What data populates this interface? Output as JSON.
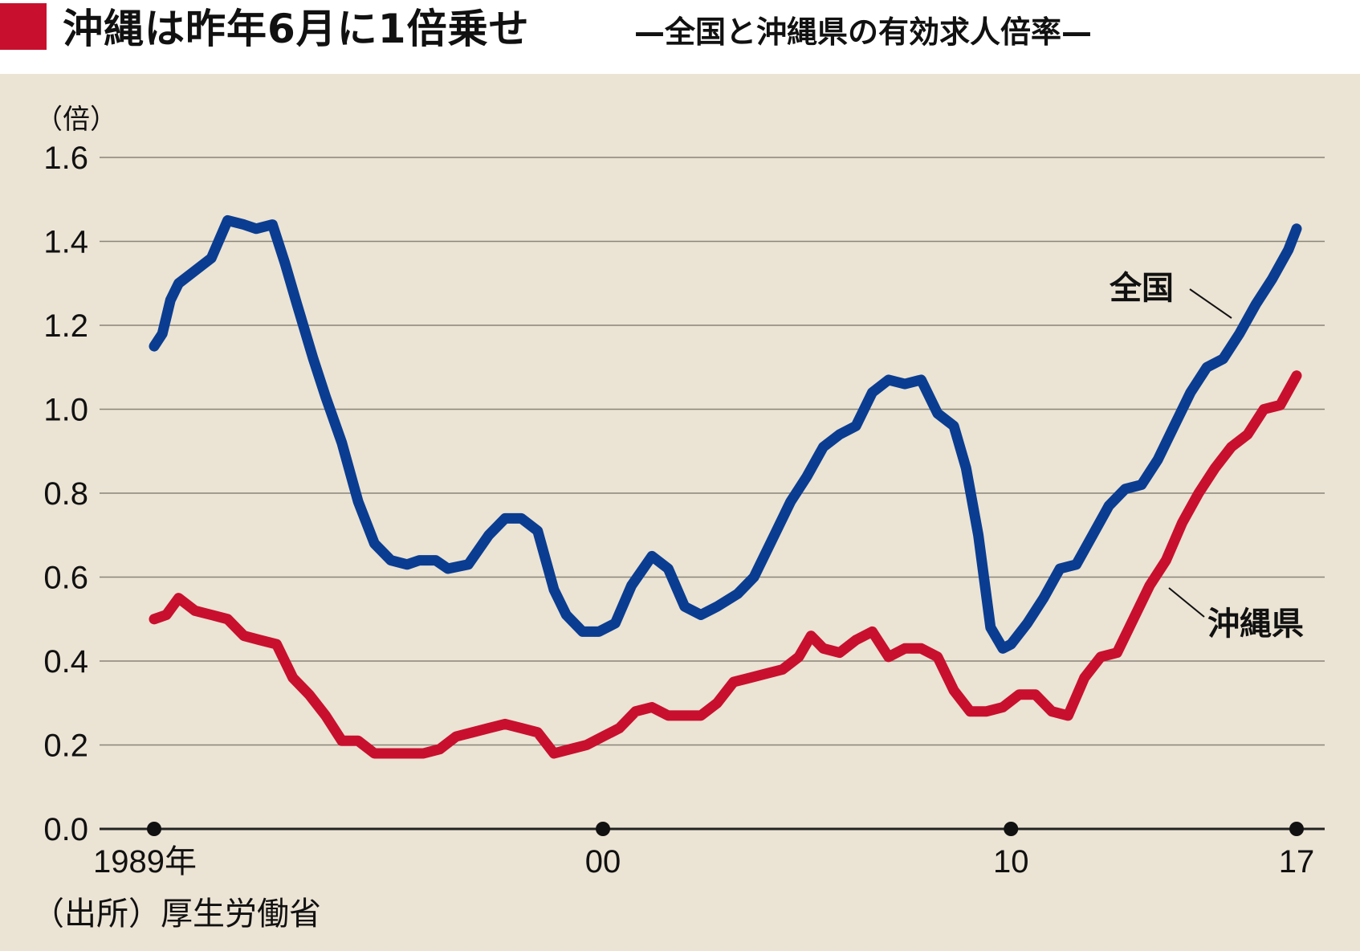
{
  "header": {
    "title": "沖縄は昨年6月に1倍乗せ",
    "subtitle": "—全国と沖縄県の有効求人倍率—",
    "accent_color": "#c8102e"
  },
  "source": "（出所）厚生労働省",
  "chart_data": {
    "type": "line",
    "ylabel": "（倍）",
    "ylim": [
      0,
      1.6
    ],
    "yticks": [
      "0.0",
      "0.2",
      "0.4",
      "0.6",
      "0.8",
      "1.0",
      "1.2",
      "1.4",
      "1.6"
    ],
    "xlim": [
      1989,
      2017
    ],
    "xticks": [
      {
        "value": 1989,
        "label": "1989年"
      },
      {
        "value": 2000,
        "label": "00"
      },
      {
        "value": 2010,
        "label": "10"
      },
      {
        "value": 2017,
        "label": "17"
      }
    ],
    "grid": true,
    "series": [
      {
        "name": "全国",
        "color": "#0a3d91",
        "x": [
          1989.0,
          1989.2,
          1989.4,
          1989.6,
          1990.0,
          1990.4,
          1990.8,
          1991.2,
          1991.5,
          1991.9,
          1992.2,
          1992.5,
          1992.9,
          1993.2,
          1993.6,
          1994.0,
          1994.4,
          1994.8,
          1995.2,
          1995.5,
          1995.9,
          1996.2,
          1996.7,
          1997.2,
          1997.6,
          1998.0,
          1998.4,
          1998.8,
          1999.1,
          1999.5,
          1999.9,
          2000.3,
          2000.7,
          2001.2,
          2001.6,
          2002.0,
          2002.4,
          2002.8,
          2003.3,
          2003.7,
          2004.2,
          2004.6,
          2005.0,
          2005.4,
          2005.8,
          2006.2,
          2006.6,
          2007.0,
          2007.4,
          2007.8,
          2008.2,
          2008.6,
          2008.9,
          2009.2,
          2009.5,
          2009.8,
          2010.0,
          2010.4,
          2010.8,
          2011.2,
          2011.6,
          2012.0,
          2012.4,
          2012.8,
          2013.2,
          2013.6,
          2014.0,
          2014.4,
          2014.8,
          2015.2,
          2015.6,
          2016.0,
          2016.4,
          2016.8,
          2017.0
        ],
        "values": [
          1.15,
          1.18,
          1.26,
          1.3,
          1.33,
          1.36,
          1.45,
          1.44,
          1.43,
          1.44,
          1.35,
          1.25,
          1.12,
          1.03,
          0.92,
          0.78,
          0.68,
          0.64,
          0.63,
          0.64,
          0.64,
          0.62,
          0.63,
          0.7,
          0.74,
          0.74,
          0.71,
          0.57,
          0.51,
          0.47,
          0.47,
          0.49,
          0.58,
          0.65,
          0.62,
          0.53,
          0.51,
          0.53,
          0.56,
          0.6,
          0.7,
          0.78,
          0.84,
          0.91,
          0.94,
          0.96,
          1.04,
          1.07,
          1.06,
          1.07,
          0.99,
          0.96,
          0.86,
          0.7,
          0.48,
          0.43,
          0.44,
          0.49,
          0.55,
          0.62,
          0.63,
          0.7,
          0.77,
          0.81,
          0.82,
          0.88,
          0.96,
          1.04,
          1.1,
          1.12,
          1.18,
          1.25,
          1.31,
          1.38,
          1.43
        ]
      },
      {
        "name": "沖縄県",
        "color": "#c8102e",
        "x": [
          1989.0,
          1989.3,
          1989.6,
          1990.0,
          1990.4,
          1990.8,
          1991.2,
          1991.6,
          1992.0,
          1992.4,
          1992.8,
          1993.2,
          1993.6,
          1994.0,
          1994.4,
          1994.8,
          1995.2,
          1995.6,
          1996.0,
          1996.4,
          1996.8,
          1997.2,
          1997.6,
          1998.0,
          1998.4,
          1998.8,
          1999.2,
          1999.6,
          2000.0,
          2000.4,
          2000.8,
          2001.2,
          2001.6,
          2002.0,
          2002.4,
          2002.8,
          2003.2,
          2003.6,
          2004.0,
          2004.4,
          2004.8,
          2005.1,
          2005.4,
          2005.8,
          2006.2,
          2006.6,
          2007.0,
          2007.4,
          2007.8,
          2008.2,
          2008.6,
          2009.0,
          2009.4,
          2009.8,
          2010.2,
          2010.6,
          2011.0,
          2011.4,
          2011.8,
          2012.2,
          2012.6,
          2013.0,
          2013.4,
          2013.8,
          2014.2,
          2014.6,
          2015.0,
          2015.4,
          2015.8,
          2016.2,
          2016.6,
          2017.0
        ],
        "values": [
          0.5,
          0.51,
          0.55,
          0.52,
          0.51,
          0.5,
          0.46,
          0.45,
          0.44,
          0.36,
          0.32,
          0.27,
          0.21,
          0.21,
          0.18,
          0.18,
          0.18,
          0.18,
          0.19,
          0.22,
          0.23,
          0.24,
          0.25,
          0.24,
          0.23,
          0.18,
          0.19,
          0.2,
          0.22,
          0.24,
          0.28,
          0.29,
          0.27,
          0.27,
          0.27,
          0.3,
          0.35,
          0.36,
          0.37,
          0.38,
          0.41,
          0.46,
          0.43,
          0.42,
          0.45,
          0.47,
          0.41,
          0.43,
          0.43,
          0.41,
          0.33,
          0.28,
          0.28,
          0.29,
          0.32,
          0.32,
          0.28,
          0.27,
          0.36,
          0.41,
          0.42,
          0.5,
          0.58,
          0.64,
          0.73,
          0.8,
          0.86,
          0.91,
          0.94,
          1.0,
          1.01,
          1.08
        ]
      }
    ],
    "annotations": [
      {
        "series": "全国",
        "text": "全国"
      },
      {
        "series": "沖縄県",
        "text": "沖縄県"
      }
    ]
  }
}
